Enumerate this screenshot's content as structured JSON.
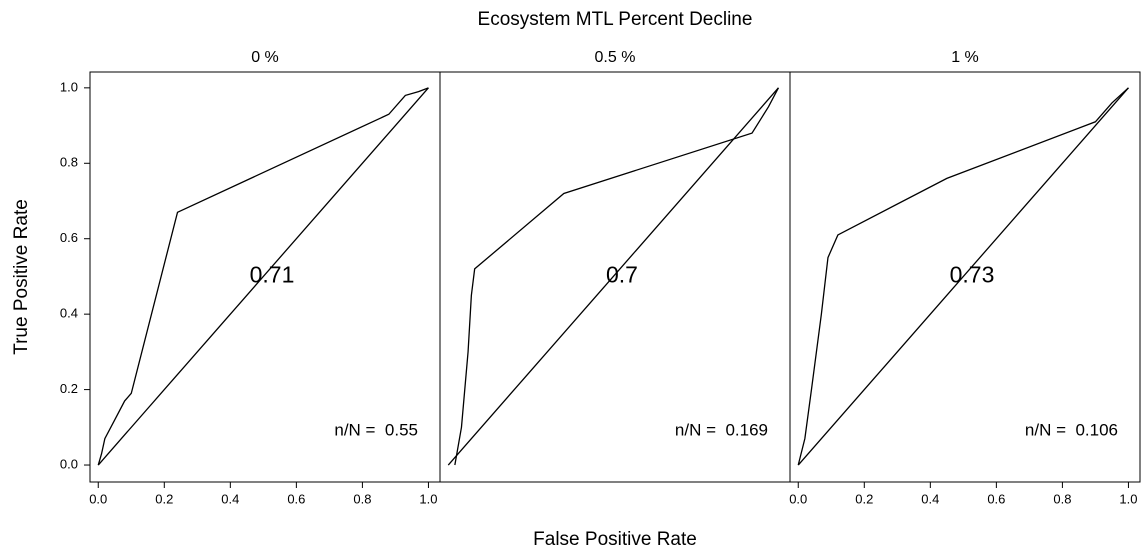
{
  "title": "Ecosystem MTL Percent Decline",
  "x_label": "False Positive Rate",
  "y_label": "True Positive Rate",
  "chart_data": [
    {
      "type": "line",
      "title": "0 %",
      "annotation": "0.71",
      "note": "n/N =  0.55",
      "xlim": [
        -0.025,
        1.035
      ],
      "ylim": [
        -0.045,
        1.042
      ],
      "xticks": [
        {
          "value": 0,
          "label": "0.0"
        },
        {
          "value": 0.2,
          "label": "0.2"
        },
        {
          "value": 0.4,
          "label": "0.4"
        },
        {
          "value": 0.6,
          "label": "0.6"
        },
        {
          "value": 0.8,
          "label": "0.8"
        },
        {
          "value": 1,
          "label": "1.0"
        }
      ],
      "yticks": [
        {
          "value": 0,
          "label": "0.0"
        },
        {
          "value": 0.2,
          "label": "0.2"
        },
        {
          "value": 0.4,
          "label": "0.4"
        },
        {
          "value": 0.6,
          "label": "0.6"
        },
        {
          "value": 0.8,
          "label": "0.8"
        },
        {
          "value": 1,
          "label": "1.0"
        }
      ],
      "series": [
        {
          "color": "#000000",
          "x": [
            0,
            0.01,
            0.02,
            0.05,
            0.08,
            0.1,
            0.24,
            0.88,
            0.93,
            0.97,
            1
          ],
          "values": [
            0,
            0.03,
            0.07,
            0.12,
            0.17,
            0.19,
            0.67,
            0.93,
            0.98,
            0.99,
            1
          ]
        },
        {
          "color": "#000000",
          "x": [
            0,
            1
          ],
          "values": [
            0,
            1
          ]
        }
      ]
    },
    {
      "type": "line",
      "title": "0.5 %",
      "annotation": "0.7",
      "note": "n/N =  0.169",
      "xlim": [
        -0.025,
        1.035
      ],
      "ylim": [
        -0.045,
        1.042
      ],
      "series": [
        {
          "color": "#000000",
          "x": [
            0.02,
            0.04,
            0.06,
            0.07,
            0.08,
            0.35,
            0.92,
            0.97,
            1
          ],
          "values": [
            0,
            0.1,
            0.3,
            0.45,
            0.52,
            0.72,
            0.88,
            0.95,
            1
          ]
        },
        {
          "color": "#000000",
          "x": [
            0,
            1
          ],
          "values": [
            0,
            1
          ]
        }
      ]
    },
    {
      "type": "line",
      "title": "1 %",
      "annotation": "0.73",
      "note": "n/N =  0.106",
      "xlim": [
        -0.025,
        1.035
      ],
      "ylim": [
        -0.045,
        1.042
      ],
      "xticks": [
        {
          "value": 0,
          "label": "0.0"
        },
        {
          "value": 0.2,
          "label": "0.2"
        },
        {
          "value": 0.4,
          "label": "0.4"
        },
        {
          "value": 0.6,
          "label": "0.6"
        },
        {
          "value": 0.8,
          "label": "0.8"
        },
        {
          "value": 1,
          "label": "1.0"
        }
      ],
      "series": [
        {
          "color": "#000000",
          "x": [
            0,
            0.02,
            0.04,
            0.07,
            0.09,
            0.12,
            0.45,
            0.9,
            0.95,
            1
          ],
          "values": [
            0,
            0.07,
            0.2,
            0.4,
            0.55,
            0.61,
            0.76,
            0.91,
            0.96,
            1
          ]
        },
        {
          "color": "#000000",
          "x": [
            0,
            1
          ],
          "values": [
            0,
            1
          ]
        }
      ]
    }
  ]
}
